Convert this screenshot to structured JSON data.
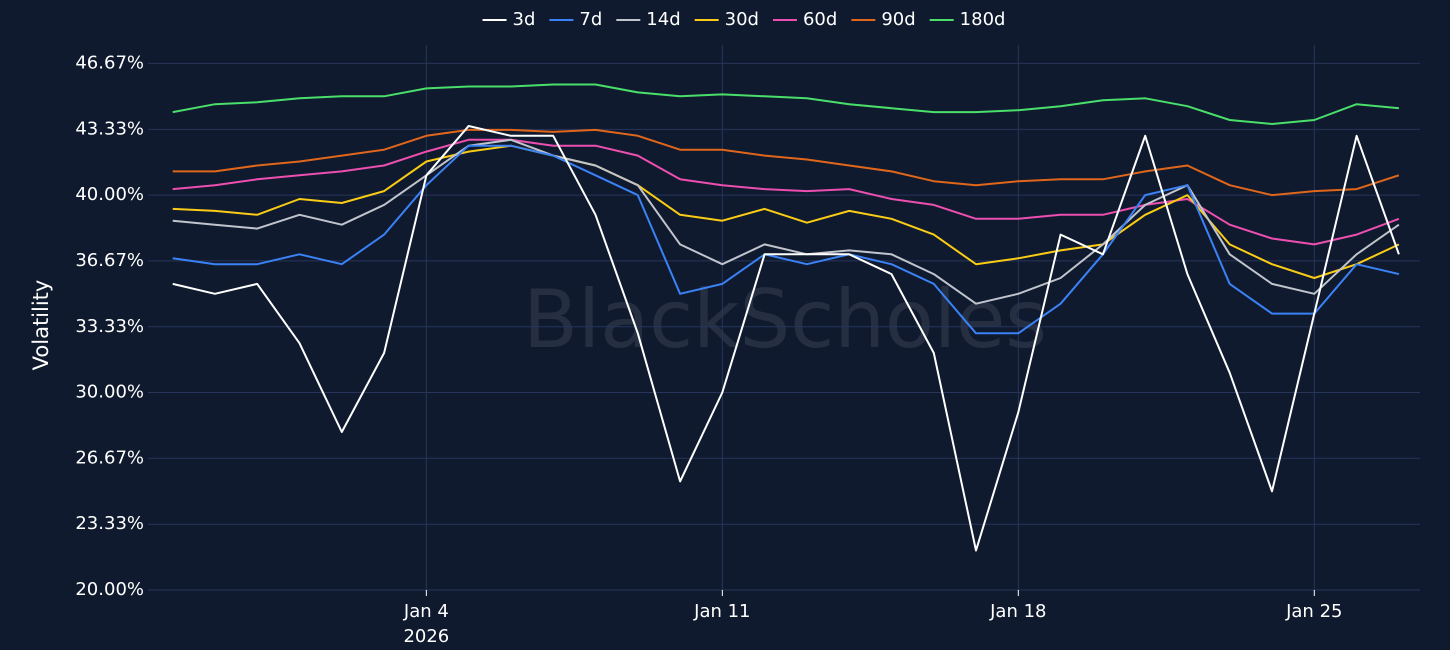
{
  "chart_data": {
    "type": "line",
    "watermark": "BlackScholes",
    "y_label": "Volatility",
    "x": [
      "2025-12-29",
      "2025-12-30",
      "2025-12-31",
      "2026-01-01",
      "2026-01-02",
      "2026-01-03",
      "2026-01-04",
      "2026-01-05",
      "2026-01-06",
      "2026-01-07",
      "2026-01-08",
      "2026-01-09",
      "2026-01-10",
      "2026-01-11",
      "2026-01-12",
      "2026-01-13",
      "2026-01-14",
      "2026-01-15",
      "2026-01-16",
      "2026-01-17",
      "2026-01-18",
      "2026-01-19",
      "2026-01-20",
      "2026-01-21",
      "2026-01-22",
      "2026-01-23",
      "2026-01-24",
      "2026-01-25",
      "2026-01-26",
      "2026-01-27"
    ],
    "series": [
      {
        "name": "3d",
        "color": "#ffffff",
        "values": [
          35.5,
          35,
          35.5,
          32.5,
          28,
          32,
          41,
          43.5,
          43,
          43,
          39,
          33,
          25.5,
          30,
          37,
          37,
          37,
          36,
          32,
          22,
          29,
          38,
          37,
          43,
          36,
          31,
          25,
          34,
          43,
          37
        ]
      },
      {
        "name": "7d",
        "color": "#3b82f6",
        "values": [
          36.8,
          36.5,
          36.5,
          37,
          36.5,
          38,
          40.5,
          42.5,
          42.5,
          42,
          41,
          40,
          35,
          35.5,
          37,
          36.5,
          37,
          36.5,
          35.5,
          33,
          33,
          34.5,
          37,
          40,
          40.5,
          35.5,
          34,
          34,
          36.5,
          36
        ]
      },
      {
        "name": "14d",
        "color": "#c0c4cc",
        "values": [
          38.7,
          38.5,
          38.3,
          39,
          38.5,
          39.5,
          41,
          42.5,
          42.8,
          42,
          41.5,
          40.5,
          37.5,
          36.5,
          37.5,
          37,
          37.2,
          37,
          36,
          34.5,
          35,
          35.8,
          37.5,
          39.5,
          40.5,
          37,
          35.5,
          35,
          37,
          38.5
        ]
      },
      {
        "name": "30d",
        "color": "#facc15",
        "values": [
          39.3,
          39.2,
          39,
          39.8,
          39.6,
          40.2,
          41.7,
          42.2,
          42.5,
          42,
          41.5,
          40.5,
          39,
          38.7,
          39.3,
          38.6,
          39.2,
          38.8,
          38,
          36.5,
          36.8,
          37.2,
          37.5,
          39,
          40,
          37.5,
          36.5,
          35.8,
          36.5,
          37.5
        ]
      },
      {
        "name": "60d",
        "color": "#ec4fb0",
        "values": [
          40.3,
          40.5,
          40.8,
          41,
          41.2,
          41.5,
          42.2,
          42.8,
          42.8,
          42.5,
          42.5,
          42,
          40.8,
          40.5,
          40.3,
          40.2,
          40.3,
          39.8,
          39.5,
          38.8,
          38.8,
          39,
          39,
          39.5,
          39.8,
          38.5,
          37.8,
          37.5,
          38,
          38.8
        ]
      },
      {
        "name": "90d",
        "color": "#e0661b",
        "values": [
          41.2,
          41.2,
          41.5,
          41.7,
          42,
          42.3,
          43,
          43.3,
          43.3,
          43.2,
          43.3,
          43,
          42.3,
          42.3,
          42,
          41.8,
          41.5,
          41.2,
          40.7,
          40.5,
          40.7,
          40.8,
          40.8,
          41.2,
          41.5,
          40.5,
          40,
          40.2,
          40.3,
          41
        ]
      },
      {
        "name": "180d",
        "color": "#4ade6a",
        "values": [
          44.2,
          44.6,
          44.7,
          44.9,
          45,
          45,
          45.4,
          45.5,
          45.5,
          45.6,
          45.6,
          45.2,
          45,
          45.1,
          45,
          44.9,
          44.6,
          44.4,
          44.2,
          44.2,
          44.3,
          44.5,
          44.8,
          44.9,
          44.5,
          43.8,
          43.6,
          43.8,
          44.6,
          44.4
        ]
      }
    ],
    "xlim": [
      "2025-12-28T10:00",
      "2026-01-27T12:00"
    ],
    "xticks": [
      {
        "value": "2026-01-04",
        "label": "Jan 4",
        "year": "2026"
      },
      {
        "value": "2026-01-11",
        "label": "Jan 11"
      },
      {
        "value": "2026-01-18",
        "label": "Jan 18"
      },
      {
        "value": "2026-01-25",
        "label": "Jan 25"
      }
    ],
    "ylim": [
      20,
      47.6
    ],
    "yticks": [
      {
        "value": 20,
        "label": "20.00%"
      },
      {
        "value": 23.33,
        "label": "23.33%"
      },
      {
        "value": 26.67,
        "label": "26.67%"
      },
      {
        "value": 30,
        "label": "30.00%"
      },
      {
        "value": 33.33,
        "label": "33.33%"
      },
      {
        "value": 36.67,
        "label": "36.67%"
      },
      {
        "value": 40,
        "label": "40.00%"
      },
      {
        "value": 43.33,
        "label": "43.33%"
      },
      {
        "value": 46.67,
        "label": "46.67%"
      }
    ],
    "grid": true,
    "legend": "top"
  }
}
